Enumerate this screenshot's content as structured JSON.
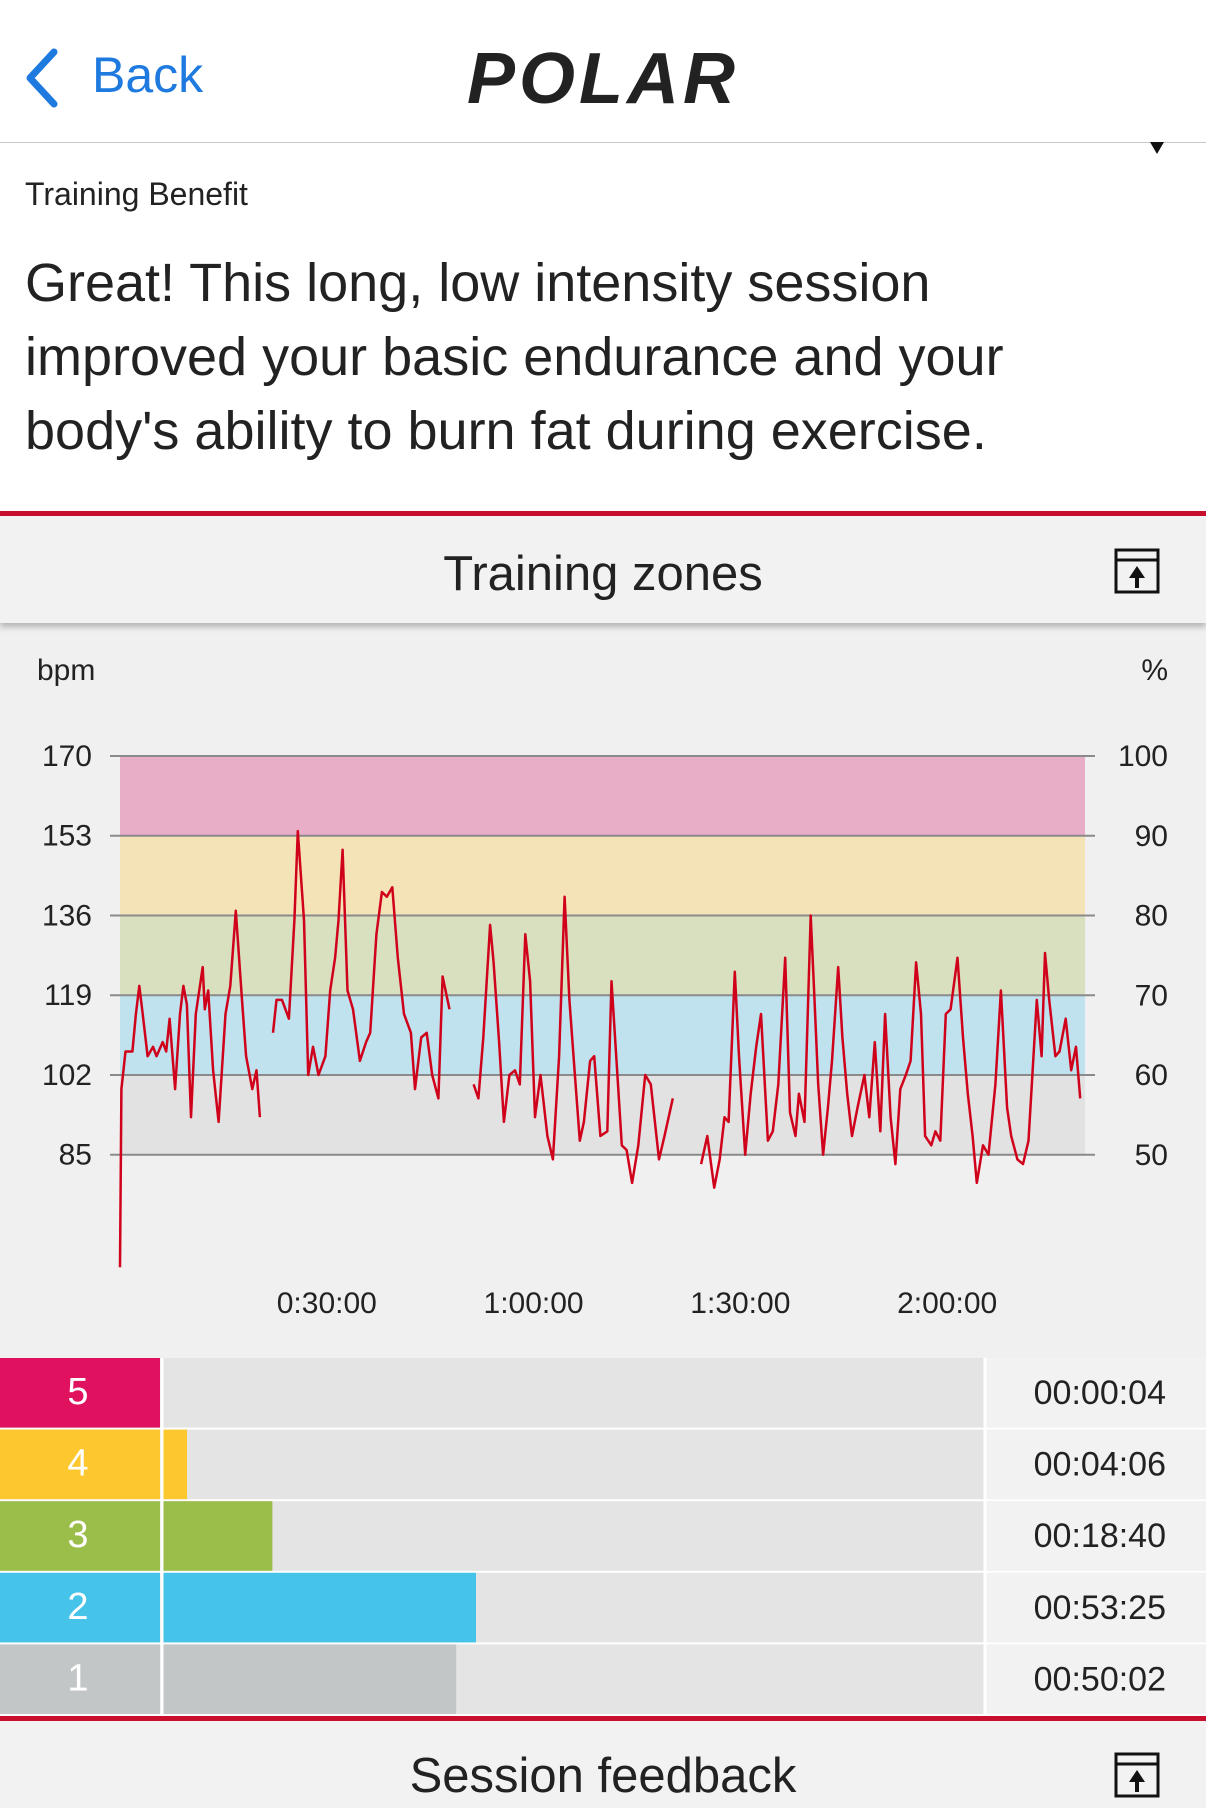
{
  "header": {
    "back": "Back",
    "logo": "POLAR"
  },
  "training_benefit": {
    "label": "Training Benefit",
    "text": "Great! This long, low intensity session improved your basic endurance and your body's ability to burn fat during exercise."
  },
  "training_zones": {
    "title": "Training zones",
    "zones": [
      {
        "zone": "5",
        "color": "#e0115f",
        "time": {
          "value": 4,
          "label": "00:00:04"
        }
      },
      {
        "zone": "4",
        "color": "#fdc82f",
        "time": {
          "value": 246,
          "label": "00:04:06"
        }
      },
      {
        "zone": "3",
        "color": "#9bbd4a",
        "time": {
          "value": 1120,
          "label": "00:18:40"
        }
      },
      {
        "zone": "2",
        "color": "#45c3e8",
        "time": {
          "value": 3205,
          "label": "00:53:25"
        }
      },
      {
        "zone": "1",
        "color": "#c3c6c7",
        "time": {
          "value": 3002,
          "label": "00:50:02"
        }
      }
    ]
  },
  "chart_data": {
    "type": "line",
    "y_label": "bpm",
    "y2_label": "%",
    "xlim": [
      0,
      140
    ],
    "xticks": [
      {
        "value": 30,
        "label": "0:30:00"
      },
      {
        "value": 60,
        "label": "1:00:00"
      },
      {
        "value": 90,
        "label": "1:30:00"
      },
      {
        "value": 120,
        "label": "2:00:00"
      }
    ],
    "ylim": [
      60,
      170
    ],
    "yticks": [
      85,
      102,
      119,
      136,
      153,
      170
    ],
    "y2lim": [
      35.3,
      100
    ],
    "y2ticks": [
      50,
      60,
      70,
      80,
      90,
      100
    ],
    "grid": true,
    "bands": [
      {
        "from": 85,
        "to": 102,
        "color": "#e2e2e2"
      },
      {
        "from": 102,
        "to": 119,
        "color": "#bfe2ee"
      },
      {
        "from": 119,
        "to": 136,
        "color": "#d9e0c0"
      },
      {
        "from": 136,
        "to": 153,
        "color": "#f5e3b8"
      },
      {
        "from": 153,
        "to": 170,
        "color": "#e8aec8"
      }
    ],
    "series": [
      {
        "color": "#d0021b",
        "x": [
          0,
          0.2,
          0.8,
          1.8,
          2.3,
          2.8,
          3.3,
          4.0,
          4.8,
          5.3,
          6.2,
          6.7,
          7.2,
          8.0,
          8.7,
          9.2,
          9.7,
          10.3,
          11.0,
          12.0,
          12.3,
          12.8,
          13.5,
          14.3,
          15.3,
          16.0,
          16.8,
          17.7,
          18.3,
          19.2,
          19.8,
          20.3,
          null,
          22.2,
          22.7,
          23.5,
          24.5,
          25.3,
          25.8,
          26.7,
          27.3,
          28.0,
          28.8,
          29.8,
          30.5,
          31.2,
          31.7,
          32.3,
          33.0,
          33.8,
          34.8,
          35.7,
          36.3,
          37.2,
          38.0,
          38.7,
          39.5,
          40.3,
          41.2,
          42.2,
          42.8,
          43.7,
          44.5,
          45.3,
          46.2,
          46.8,
          47.8,
          null,
          51.3,
          52.0,
          52.7,
          53.7,
          54.2,
          55.0,
          55.7,
          56.5,
          57.3,
          58.0,
          58.8,
          59.5,
          60.2,
          61.0,
          62.0,
          62.8,
          63.7,
          64.5,
          65.2,
          66.0,
          66.7,
          67.3,
          68.2,
          68.8,
          69.7,
          70.7,
          71.3,
          72.2,
          72.8,
          73.5,
          74.3,
          75.2,
          76.2,
          77.0,
          78.2,
          79.0,
          80.2,
          null,
          84.3,
          85.2,
          86.2,
          87.0,
          87.7,
          88.3,
          89.2,
          89.8,
          90.7,
          91.5,
          92.3,
          93.0,
          94.0,
          94.7,
          95.5,
          96.5,
          97.2,
          98.0,
          98.5,
          99.3,
          100.2,
          100.7,
          101.3,
          102.0,
          102.7,
          103.3,
          104.2,
          104.8,
          105.5,
          106.2,
          107.0,
          108.0,
          108.7,
          109.5,
          110.3,
          111.0,
          111.8,
          112.5,
          113.2,
          114.0,
          114.7,
          115.5,
          116.2,
          116.8,
          117.7,
          118.3,
          119.0,
          119.8,
          120.5,
          121.5,
          122.3,
          123.0,
          123.7,
          124.3,
          125.2,
          126.0,
          127.0,
          127.8,
          128.7,
          129.3,
          130.2,
          131.0,
          131.8,
          133.0,
          133.7,
          134.2,
          134.8,
          135.7,
          136.3,
          137.2,
          138.0,
          138.7,
          139.3
        ],
        "values": [
          61,
          99,
          107,
          107,
          115,
          121,
          115,
          106,
          108,
          106,
          109,
          107,
          114,
          99,
          115,
          121,
          117,
          93,
          115,
          125,
          116,
          120,
          103,
          92,
          115,
          121,
          137,
          118,
          106,
          99,
          103,
          93,
          null,
          111,
          118,
          118,
          114,
          135,
          154,
          135,
          102,
          108,
          102,
          106,
          120,
          127,
          135,
          150,
          120,
          116,
          105,
          109,
          111,
          132,
          141,
          140,
          142,
          127,
          115,
          111,
          99,
          110,
          111,
          102,
          97,
          123,
          116,
          null,
          100,
          97,
          110,
          134,
          126,
          109,
          92,
          102,
          103,
          100,
          132,
          122,
          93,
          102,
          89,
          84,
          106,
          140,
          118,
          102,
          88,
          92,
          105,
          106,
          89,
          90,
          122,
          101,
          87,
          86,
          79,
          87,
          102,
          100,
          84,
          89,
          97,
          null,
          83,
          89,
          78,
          84,
          93,
          92,
          124,
          106,
          85,
          98,
          108,
          115,
          88,
          90,
          100,
          127,
          94,
          89,
          98,
          92,
          136,
          120,
          100,
          85,
          95,
          105,
          125,
          110,
          98,
          89,
          95,
          102,
          93,
          109,
          90,
          115,
          93,
          83,
          99,
          102,
          105,
          126,
          115,
          89,
          87,
          90,
          88,
          115,
          116,
          127,
          110,
          98,
          89,
          79,
          87,
          85,
          100,
          120,
          95,
          89,
          84,
          83,
          88,
          118,
          106,
          128,
          118,
          106,
          107,
          114,
          103,
          108,
          97
        ]
      }
    ]
  },
  "session_feedback": {
    "title": "Session feedback"
  }
}
